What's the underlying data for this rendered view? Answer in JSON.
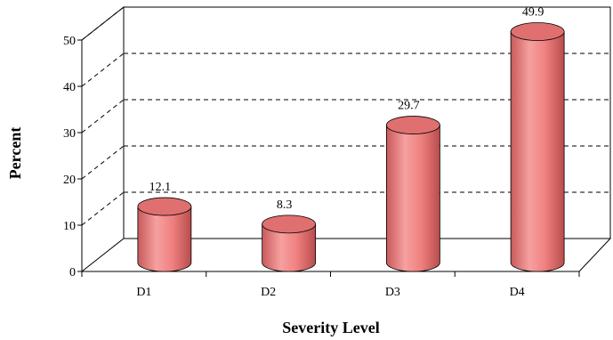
{
  "chart_data": {
    "type": "bar",
    "style": "3d-cylinder",
    "xlabel": "Severity Level",
    "ylabel": "Percent",
    "categories": [
      "D1",
      "D2",
      "D3",
      "D4"
    ],
    "values": [
      12.1,
      8.3,
      29.7,
      49.9
    ],
    "data_labels": [
      "12.1",
      "8.3",
      "29.7",
      "49.9"
    ],
    "ylim": [
      0,
      50
    ],
    "yticks": [
      "0",
      "10",
      "20",
      "30",
      "40",
      "50"
    ],
    "grid": true,
    "legend": "none",
    "colors": {
      "bar": "#f08080",
      "bar_dark": "#c05050",
      "bar_top": "#e07070"
    }
  }
}
